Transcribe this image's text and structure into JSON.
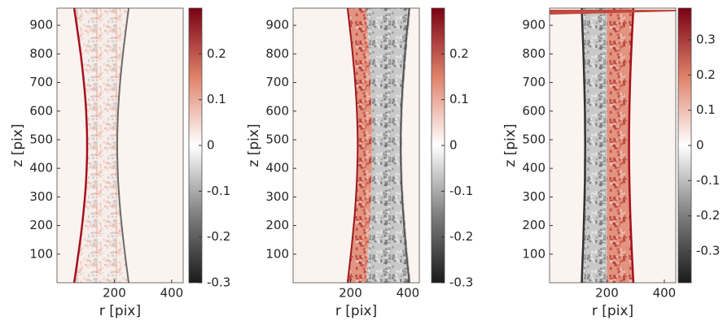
{
  "chart_data": [
    {
      "type": "heatmap",
      "xlabel": "r [pix]",
      "ylabel": "z [pix]",
      "xlim": [
        0,
        440
      ],
      "ylim": [
        0,
        960
      ],
      "xticks": [
        200,
        400
      ],
      "yticks": [
        100,
        200,
        300,
        400,
        500,
        600,
        700,
        800,
        900
      ],
      "clim": [
        -0.3,
        0.3
      ],
      "cticks": [
        -0.3,
        -0.2,
        -0.1,
        0,
        0.1,
        0.2
      ]
    },
    {
      "type": "heatmap",
      "xlabel": "r [pix]",
      "ylabel": "z [pix]",
      "xlim": [
        0,
        440
      ],
      "ylim": [
        0,
        960
      ],
      "xticks": [
        200,
        400
      ],
      "yticks": [
        100,
        200,
        300,
        400,
        500,
        600,
        700,
        800,
        900
      ],
      "clim": [
        -0.3,
        0.3
      ],
      "cticks": [
        -0.3,
        -0.2,
        -0.1,
        0,
        0.1,
        0.2
      ]
    },
    {
      "type": "heatmap",
      "xlabel": "r [pix]",
      "ylabel": "z [pix]",
      "xlim": [
        0,
        440
      ],
      "ylim": [
        0,
        960
      ],
      "xticks": [
        200,
        400
      ],
      "yticks": [
        100,
        200,
        300,
        400,
        500,
        600,
        700,
        800,
        900
      ],
      "clim": [
        -0.39,
        0.39
      ],
      "cticks": [
        -0.3,
        -0.2,
        -0.1,
        0,
        0.1,
        0.2,
        0.3
      ]
    }
  ]
}
